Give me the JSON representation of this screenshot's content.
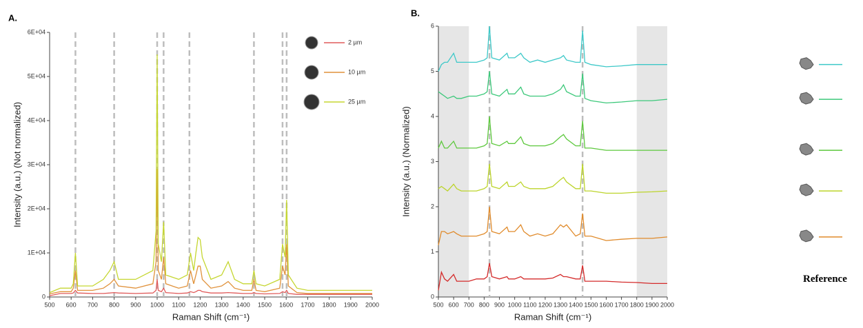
{
  "chart_data": [
    {
      "type": "line",
      "panel_label": "A.",
      "x_label": "Raman Shift (cm⁻¹)",
      "y_label": "Intensity (a.u.) (Not normalized)",
      "x": [
        500,
        550,
        600,
        610,
        620,
        630,
        700,
        750,
        780,
        800,
        820,
        900,
        980,
        995,
        1000,
        1005,
        1020,
        1030,
        1040,
        1100,
        1140,
        1155,
        1170,
        1180,
        1190,
        1200,
        1210,
        1250,
        1300,
        1330,
        1360,
        1400,
        1440,
        1450,
        1460,
        1500,
        1570,
        1583,
        1595,
        1602,
        1610,
        1650,
        1700,
        1800,
        1900,
        2000
      ],
      "series": [
        {
          "name": "2 µm",
          "color": "#e05a5a",
          "values": [
            300,
            800,
            800,
            900,
            1500,
            900,
            800,
            800,
            900,
            1000,
            900,
            800,
            900,
            1500,
            4000,
            1500,
            1200,
            2000,
            1000,
            800,
            900,
            1200,
            1000,
            1200,
            1500,
            1500,
            1200,
            900,
            900,
            1000,
            900,
            800,
            800,
            1000,
            800,
            700,
            800,
            1200,
            1000,
            1500,
            800,
            600,
            600,
            600,
            600,
            600
          ]
        },
        {
          "name": "10 µm",
          "color": "#e0913a",
          "values": [
            700,
            1200,
            1200,
            2000,
            6000,
            1500,
            1500,
            2000,
            3000,
            4000,
            2500,
            2000,
            3000,
            8000,
            29000,
            6000,
            4000,
            9000,
            3000,
            2000,
            2500,
            6000,
            3000,
            5000,
            7000,
            7000,
            4000,
            2000,
            2500,
            3500,
            2000,
            1500,
            1500,
            4000,
            1500,
            1200,
            2000,
            7000,
            5000,
            12000,
            2500,
            1000,
            800,
            800,
            800,
            800
          ]
        },
        {
          "name": "25 µm",
          "color": "#c5d630",
          "values": [
            1000,
            2000,
            2000,
            3000,
            10000,
            2500,
            2500,
            4000,
            6000,
            8000,
            4000,
            4000,
            6000,
            15000,
            55000,
            12000,
            8000,
            17000,
            5000,
            4000,
            5000,
            10000,
            6000,
            10000,
            13500,
            13000,
            9000,
            4000,
            5000,
            8000,
            4000,
            3000,
            3000,
            6000,
            3000,
            2500,
            4000,
            12000,
            9000,
            22000,
            5000,
            2000,
            1500,
            1500,
            1500,
            1500
          ]
        }
      ],
      "xlim": [
        500,
        2000
      ],
      "xticks": [
        500,
        600,
        700,
        800,
        900,
        1000,
        1100,
        1200,
        1300,
        1400,
        1500,
        1600,
        1700,
        1800,
        1900,
        2000
      ],
      "ylim": [
        0,
        60000
      ],
      "yticks": [
        0,
        {
          "value": 10000,
          "label": "1E+04"
        },
        {
          "value": 20000,
          "label": "2E+04"
        },
        {
          "value": 30000,
          "label": "3E+04"
        },
        {
          "value": 40000,
          "label": "4E+04"
        },
        {
          "value": 50000,
          "label": "5E+04"
        },
        {
          "value": 60000,
          "label": "6E+04"
        }
      ],
      "ref_lines": [
        620,
        800,
        1000,
        1030,
        1150,
        1450,
        1583,
        1602
      ]
    },
    {
      "type": "line",
      "panel_label": "B.",
      "x_label": "Raman Shift (cm⁻¹)",
      "y_label": "Intensity (a.u.) (Normalized)",
      "x": [
        500,
        520,
        540,
        560,
        600,
        620,
        650,
        700,
        750,
        800,
        820,
        835,
        850,
        900,
        950,
        960,
        1000,
        1040,
        1060,
        1100,
        1150,
        1200,
        1250,
        1300,
        1320,
        1340,
        1400,
        1430,
        1445,
        1460,
        1500,
        1600,
        1700,
        1800,
        1900,
        2000
      ],
      "series": [
        {
          "name": "Reference",
          "color": "#d42a2a",
          "values": [
            0.15,
            0.55,
            0.4,
            0.35,
            0.5,
            0.35,
            0.35,
            0.35,
            0.4,
            0.4,
            0.45,
            0.75,
            0.45,
            0.4,
            0.45,
            0.4,
            0.4,
            0.45,
            0.4,
            0.4,
            0.4,
            0.4,
            0.42,
            0.5,
            0.45,
            0.45,
            0.4,
            0.4,
            0.7,
            0.35,
            0.35,
            0.35,
            0.33,
            0.32,
            0.3,
            0.3
          ]
        },
        {
          "color": "#e08a2a",
          "values": [
            1.15,
            1.45,
            1.45,
            1.4,
            1.45,
            1.4,
            1.35,
            1.35,
            1.35,
            1.4,
            1.45,
            2.0,
            1.45,
            1.4,
            1.55,
            1.45,
            1.45,
            1.6,
            1.45,
            1.35,
            1.4,
            1.35,
            1.4,
            1.6,
            1.55,
            1.6,
            1.35,
            1.4,
            1.85,
            1.35,
            1.35,
            1.25,
            1.28,
            1.3,
            1.3,
            1.33
          ]
        },
        {
          "color": "#bcd42a",
          "values": [
            2.4,
            2.45,
            2.4,
            2.35,
            2.5,
            2.4,
            2.35,
            2.35,
            2.35,
            2.4,
            2.45,
            2.95,
            2.45,
            2.4,
            2.55,
            2.45,
            2.45,
            2.55,
            2.45,
            2.4,
            2.4,
            2.4,
            2.45,
            2.6,
            2.65,
            2.55,
            2.4,
            2.4,
            2.95,
            2.35,
            2.35,
            2.3,
            2.3,
            2.32,
            2.33,
            2.35
          ]
        },
        {
          "color": "#5cc83c",
          "values": [
            3.3,
            3.45,
            3.3,
            3.3,
            3.45,
            3.3,
            3.3,
            3.3,
            3.3,
            3.35,
            3.4,
            4.0,
            3.4,
            3.35,
            3.45,
            3.4,
            3.4,
            3.55,
            3.4,
            3.35,
            3.35,
            3.35,
            3.4,
            3.55,
            3.6,
            3.5,
            3.35,
            3.35,
            3.9,
            3.3,
            3.3,
            3.25,
            3.25,
            3.25,
            3.25,
            3.25
          ]
        },
        {
          "color": "#3cc87a",
          "values": [
            4.55,
            4.5,
            4.45,
            4.4,
            4.45,
            4.4,
            4.4,
            4.45,
            4.45,
            4.5,
            4.55,
            5.0,
            4.5,
            4.45,
            4.6,
            4.5,
            4.5,
            4.65,
            4.5,
            4.45,
            4.45,
            4.45,
            4.5,
            4.6,
            4.7,
            4.55,
            4.45,
            4.45,
            4.95,
            4.4,
            4.35,
            4.3,
            4.32,
            4.35,
            4.35,
            4.38
          ]
        },
        {
          "color": "#3cc8c8",
          "values": [
            5.0,
            5.15,
            5.2,
            5.2,
            5.4,
            5.2,
            5.2,
            5.2,
            5.2,
            5.25,
            5.3,
            6.0,
            5.3,
            5.25,
            5.4,
            5.3,
            5.3,
            5.4,
            5.3,
            5.2,
            5.25,
            5.2,
            5.25,
            5.3,
            5.35,
            5.25,
            5.2,
            5.2,
            5.9,
            5.2,
            5.15,
            5.1,
            5.12,
            5.15,
            5.15,
            5.15
          ]
        }
      ],
      "xlim": [
        500,
        2000
      ],
      "xticks": [
        500,
        600,
        700,
        800,
        900,
        1000,
        1100,
        1200,
        1300,
        1400,
        1500,
        1600,
        1700,
        1800,
        1900,
        2000
      ],
      "ylim": [
        0,
        6
      ],
      "yticks": [
        0,
        1,
        2,
        3,
        4,
        5,
        6
      ],
      "ref_lines": [
        835,
        1445
      ],
      "shaded_regions": [
        [
          500,
          700
        ],
        [
          1800,
          2000
        ]
      ]
    }
  ]
}
